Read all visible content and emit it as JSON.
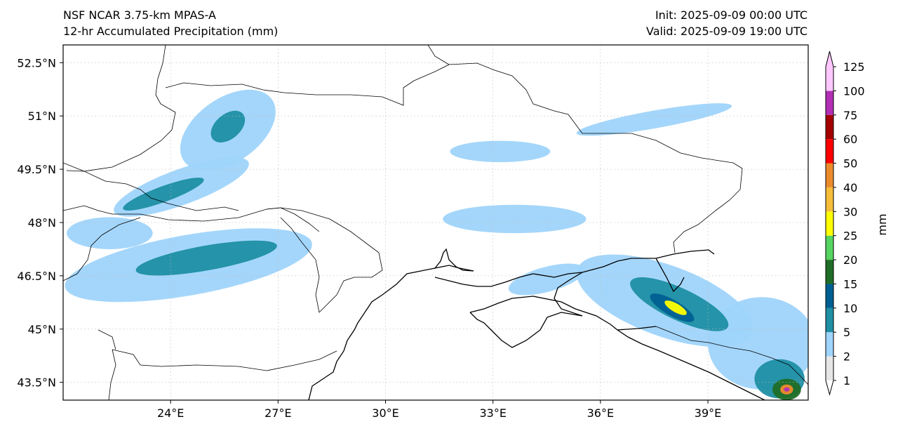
{
  "titles": {
    "model": "NSF NCAR 3.75-km MPAS-A",
    "field": "12-hr Accumulated Precipitation (mm)",
    "init": "Init: 2025-09-09 00:00 UTC",
    "valid": "Valid: 2025-09-09 19:00 UTC"
  },
  "map": {
    "lon_range": [
      21,
      41.8
    ],
    "lat_range": [
      43,
      53
    ],
    "lat_ticks": [
      {
        "value": 52.5,
        "label": "52.5°N"
      },
      {
        "value": 51,
        "label": "51°N"
      },
      {
        "value": 49.5,
        "label": "49.5°N"
      },
      {
        "value": 48,
        "label": "48°N"
      },
      {
        "value": 46.5,
        "label": "46.5°N"
      },
      {
        "value": 45,
        "label": "45°N"
      },
      {
        "value": 43.5,
        "label": "43.5°N"
      }
    ],
    "lon_ticks": [
      {
        "value": 24,
        "label": "24°E"
      },
      {
        "value": 27,
        "label": "27°E"
      },
      {
        "value": 30,
        "label": "30°E"
      },
      {
        "value": 33,
        "label": "33°E"
      },
      {
        "value": 36,
        "label": "36°E"
      },
      {
        "value": 39,
        "label": "39°E"
      }
    ],
    "grid": true
  },
  "colorbar": {
    "unit_label": "mm",
    "levels": [
      "1",
      "2",
      "5",
      "10",
      "15",
      "20",
      "25",
      "30",
      "40",
      "50",
      "60",
      "75",
      "100",
      "125"
    ],
    "colors": [
      "#e6e6e6",
      "#9fd4fb",
      "#1f8fa4",
      "#005f92",
      "#1f6d27",
      "#56d460",
      "#ffff00",
      "#f6bd3b",
      "#ec8b2c",
      "#ff0000",
      "#a40000",
      "#b22fb5",
      "#ffc7ff"
    ],
    "extend": "both"
  },
  "precip_regions": [
    {
      "lon": 25.6,
      "lat": 50.6,
      "rlon": 1.5,
      "rlat": 0.9,
      "rot": 35,
      "level": 2
    },
    {
      "lon": 24.3,
      "lat": 49.0,
      "rlon": 2.0,
      "rlat": 0.5,
      "rot": 20,
      "level": 2
    },
    {
      "lon": 24.5,
      "lat": 46.8,
      "rlon": 3.5,
      "rlat": 0.85,
      "rot": 10,
      "level": 2
    },
    {
      "lon": 22.3,
      "lat": 47.7,
      "rlon": 1.2,
      "rlat": 0.45,
      "rot": 0,
      "level": 2
    },
    {
      "lon": 33.2,
      "lat": 50.0,
      "rlon": 1.4,
      "rlat": 0.3,
      "rot": 0,
      "level": 2
    },
    {
      "lon": 33.6,
      "lat": 48.1,
      "rlon": 2.0,
      "rlat": 0.4,
      "rot": 0,
      "level": 2
    },
    {
      "lon": 37.5,
      "lat": 50.9,
      "rlon": 2.2,
      "rlat": 0.25,
      "rot": 10,
      "level": 2
    },
    {
      "lon": 37.8,
      "lat": 45.8,
      "rlon": 2.6,
      "rlat": 1.0,
      "rot": -20,
      "level": 2
    },
    {
      "lon": 40.5,
      "lat": 44.6,
      "rlon": 1.5,
      "rlat": 1.3,
      "rot": 0,
      "level": 2
    },
    {
      "lon": 34.5,
      "lat": 46.4,
      "rlon": 1.1,
      "rlat": 0.35,
      "rot": 15,
      "level": 2
    },
    {
      "lon": 25.6,
      "lat": 50.7,
      "rlon": 0.55,
      "rlat": 0.35,
      "rot": 40,
      "level": 5
    },
    {
      "lon": 23.8,
      "lat": 48.8,
      "rlon": 1.2,
      "rlat": 0.22,
      "rot": 20,
      "level": 5
    },
    {
      "lon": 25.0,
      "lat": 47.0,
      "rlon": 2.0,
      "rlat": 0.35,
      "rot": 10,
      "level": 5
    },
    {
      "lon": 38.2,
      "lat": 45.7,
      "rlon": 1.5,
      "rlat": 0.45,
      "rot": -25,
      "level": 5
    },
    {
      "lon": 41.0,
      "lat": 43.6,
      "rlon": 0.7,
      "rlat": 0.55,
      "rot": 0,
      "level": 5
    },
    {
      "lon": 38.0,
      "lat": 45.6,
      "rlon": 0.7,
      "rlat": 0.22,
      "rot": -30,
      "level": 10
    },
    {
      "lon": 38.1,
      "lat": 45.6,
      "rlon": 0.35,
      "rlat": 0.12,
      "rot": -30,
      "level": 25
    },
    {
      "lon": 41.2,
      "lat": 43.3,
      "rlon": 0.4,
      "rlat": 0.3,
      "rot": 0,
      "level": 15
    },
    {
      "lon": 41.2,
      "lat": 43.3,
      "rlon": 0.18,
      "rlat": 0.14,
      "rot": 0,
      "level": 40
    },
    {
      "lon": 41.2,
      "lat": 43.3,
      "rlon": 0.08,
      "rlat": 0.06,
      "rot": 0,
      "level": 75
    }
  ]
}
